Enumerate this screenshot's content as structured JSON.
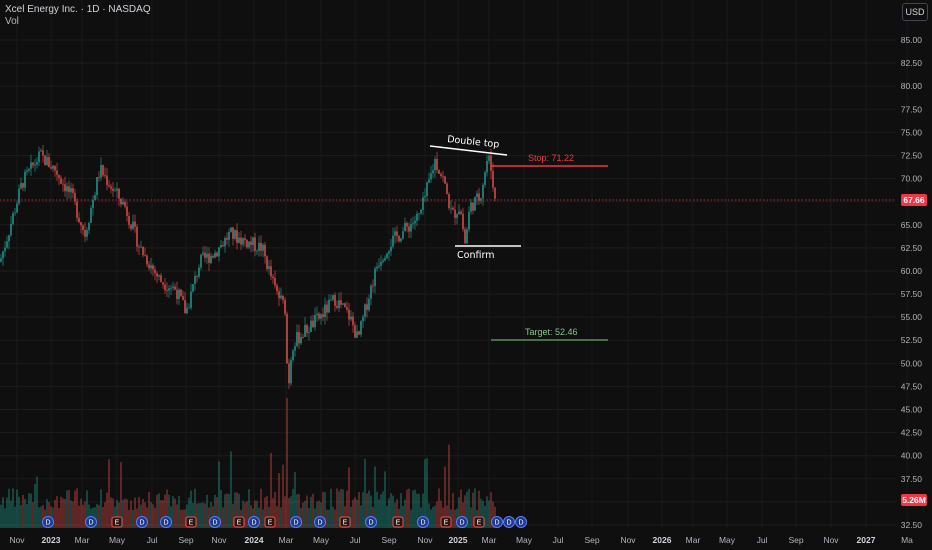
{
  "header": {
    "symbol_line": "Xcel Energy Inc. · 1D · NASDAQ",
    "volume_label": "Vol",
    "currency_button": "USD"
  },
  "price_axis": {
    "ticks": [
      "85.00",
      "82.50",
      "80.00",
      "77.50",
      "75.00",
      "72.50",
      "70.00",
      "67.50",
      "65.00",
      "62.50",
      "60.00",
      "57.50",
      "55.00",
      "52.50",
      "50.00",
      "47.50",
      "45.00",
      "42.50",
      "40.00",
      "37.50",
      "35.00",
      "32.50"
    ],
    "last_price_label": "67.66",
    "volume_label": "5.26M"
  },
  "time_axis": {
    "labels": [
      "Nov",
      "2023",
      "Mar",
      "May",
      "Jul",
      "Sep",
      "Nov",
      "2024",
      "Mar",
      "May",
      "Jul",
      "Sep",
      "Nov",
      "2025",
      "Mar",
      "May",
      "Jul",
      "Sep",
      "Nov",
      "2026",
      "Mar",
      "May",
      "Jul",
      "Sep",
      "Nov",
      "2027",
      "Ma"
    ]
  },
  "annotations": {
    "double_top": "Double top",
    "confirm": "Confirm",
    "stop": "Stop: 71.22",
    "target": "Target: 52.46"
  },
  "colors": {
    "up": "#26a69a",
    "down": "#ef5350",
    "stop_line": "#f23645",
    "target_line": "#81c784",
    "last_price": "#f23645",
    "background": "#0f0f0f"
  },
  "event_badges": [
    "D",
    "D",
    "E",
    "D",
    "D",
    "E",
    "D",
    "E",
    "D",
    "E",
    "D",
    "D",
    "E",
    "D",
    "E",
    "D",
    "E",
    "D",
    "E",
    "D",
    "D",
    "D",
    "Σ"
  ],
  "chart_data": {
    "type": "candlestick",
    "title": "Xcel Energy Inc. · 1D · NASDAQ",
    "ylim": [
      32.5,
      85
    ],
    "x": [
      "2022-11",
      "2023-01",
      "2023-03",
      "2023-05",
      "2023-07",
      "2023-09",
      "2023-11",
      "2024-01",
      "2024-03",
      "2024-05",
      "2024-07",
      "2024-09",
      "2024-11",
      "2025-01",
      "2025-03"
    ],
    "close": [
      61.0,
      71.0,
      65.5,
      69.0,
      62.0,
      57.0,
      61.5,
      63.0,
      54.0,
      55.5,
      55.5,
      65.0,
      68.5,
      70.0,
      67.66
    ],
    "last_price": 67.66,
    "volume_last": "5.26M",
    "levels": {
      "stop": 71.22,
      "target": 52.46,
      "confirm": 62.8,
      "double_top": 73.0
    }
  }
}
